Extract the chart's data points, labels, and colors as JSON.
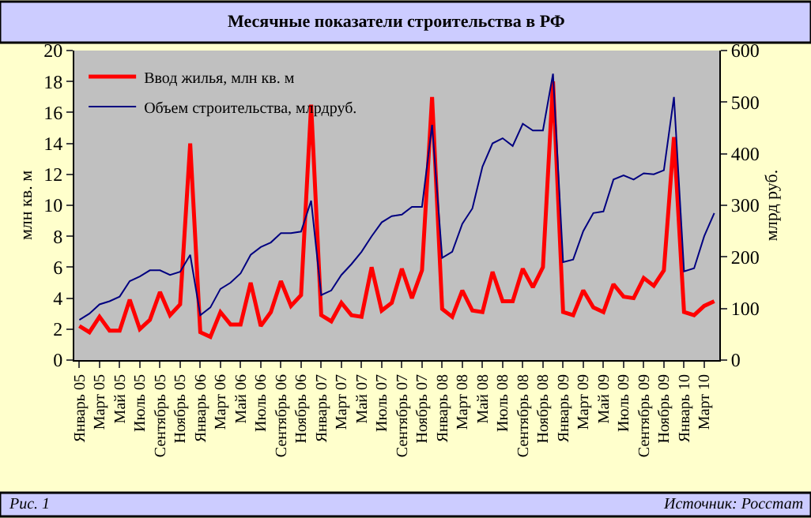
{
  "chart_data": {
    "type": "line",
    "title": "Месячные показатели строительства в РФ",
    "categories": [
      "Январь 05",
      null,
      "Март 05",
      null,
      "Май 05",
      null,
      "Июль 05",
      null,
      "Сентябрь 05",
      null,
      "Ноябрь 05",
      null,
      "Январь 06",
      null,
      "Март 06",
      null,
      "Май 06",
      null,
      "Июль 06",
      null,
      "Сентябрь 06",
      null,
      "Ноябрь 06",
      null,
      "Январь 07",
      null,
      "Март 07",
      null,
      "Май 07",
      null,
      "Июль 07",
      null,
      "Сентябрь 07",
      null,
      "Ноябрь 07",
      null,
      "Январь 08",
      null,
      "Март 08",
      null,
      "Май 08",
      null,
      "Июль 08",
      null,
      "Сентябрь 08",
      null,
      "Ноябрь 08",
      null,
      "Январь 09",
      null,
      "Март 09",
      null,
      "Май 09",
      null,
      "Июль 09",
      null,
      "Сентябрь 09",
      null,
      "Ноябрь 09",
      null,
      "Январь 10",
      null,
      "Март 10",
      null
    ],
    "series": [
      {
        "name": "Ввод жилья, млн кв. м",
        "color": "#ff0000",
        "values": [
          2.2,
          1.8,
          2.8,
          1.9,
          1.9,
          3.9,
          2.0,
          2.6,
          4.4,
          2.9,
          3.6,
          14.0,
          1.8,
          1.5,
          3.1,
          2.3,
          2.3,
          5.0,
          2.2,
          3.1,
          5.1,
          3.5,
          4.2,
          16.5,
          2.9,
          2.5,
          3.7,
          2.9,
          2.8,
          6.0,
          3.2,
          3.7,
          5.9,
          4.0,
          5.8,
          17.0,
          3.3,
          2.8,
          4.5,
          3.2,
          3.1,
          5.7,
          3.8,
          3.8,
          5.9,
          4.7,
          6.0,
          18.0,
          3.1,
          2.9,
          4.5,
          3.4,
          3.1,
          4.9,
          4.1,
          4.0,
          5.3,
          4.8,
          5.8,
          14.4,
          3.1,
          2.9,
          3.5,
          3.8
        ]
      },
      {
        "name": "Объем строительства, млрдруб.",
        "color": "#000080",
        "axis": "y2",
        "values": [
          78,
          90,
          108,
          114,
          123,
          153,
          162,
          174,
          174,
          165,
          171,
          204,
          87,
          102,
          138,
          150,
          168,
          204,
          219,
          228,
          246,
          246,
          249,
          309,
          126,
          135,
          165,
          186,
          210,
          240,
          267,
          279,
          282,
          297,
          297,
          456,
          198,
          210,
          264,
          294,
          375,
          420,
          430,
          415,
          458,
          445,
          445,
          555,
          190,
          195,
          250,
          285,
          288,
          350,
          358,
          350,
          362,
          360,
          368,
          510,
          172,
          178,
          240,
          285
        ]
      }
    ],
    "ylabel": "млн кв. м",
    "y2label": "млрд руб.",
    "ylim": [
      0,
      20
    ],
    "yticks": [
      0,
      2,
      4,
      6,
      8,
      10,
      12,
      14,
      16,
      18,
      20
    ],
    "y2lim": [
      0,
      600
    ],
    "y2ticks": [
      0,
      100,
      200,
      300,
      400,
      500,
      600
    ],
    "legend": "top left",
    "grid": false,
    "annotations": [
      "Рис. 1",
      "Источник: Росстат"
    ]
  }
}
